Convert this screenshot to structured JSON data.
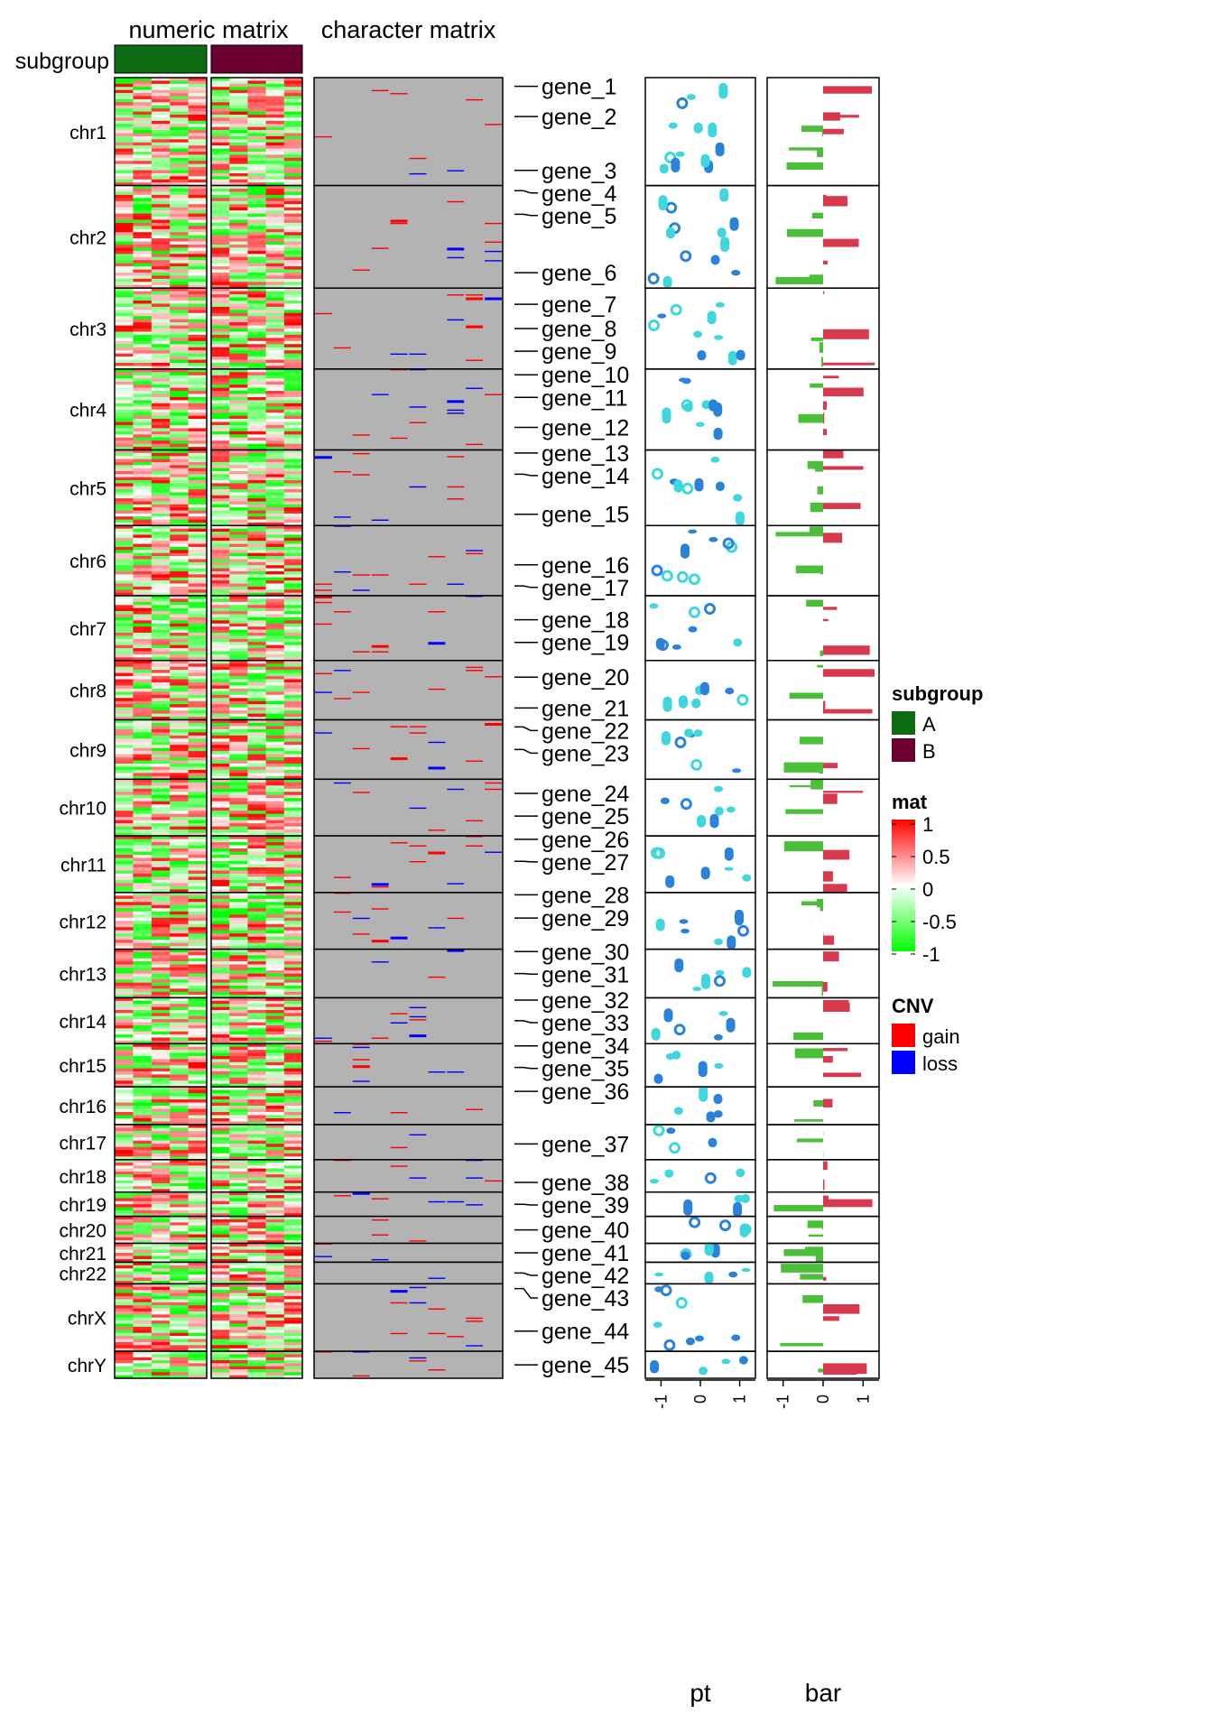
{
  "chart_data": {
    "type": "heatmap",
    "titles": {
      "numeric": "numeric matrix",
      "character": "character matrix"
    },
    "row_annotation_label": "subgroup",
    "subgroups": [
      {
        "name": "A",
        "color": "#0d6b12"
      },
      {
        "name": "B",
        "color": "#6b0030"
      }
    ],
    "chromosomes": [
      {
        "label": "chr1",
        "size": 20
      },
      {
        "label": "chr2",
        "size": 19
      },
      {
        "label": "chr3",
        "size": 15
      },
      {
        "label": "chr4",
        "size": 15
      },
      {
        "label": "chr5",
        "size": 14
      },
      {
        "label": "chr6",
        "size": 13
      },
      {
        "label": "chr7",
        "size": 12
      },
      {
        "label": "chr8",
        "size": 11
      },
      {
        "label": "chr9",
        "size": 11
      },
      {
        "label": "chr10",
        "size": 10.5
      },
      {
        "label": "chr11",
        "size": 10.5
      },
      {
        "label": "chr12",
        "size": 10.5
      },
      {
        "label": "chr13",
        "size": 9
      },
      {
        "label": "chr14",
        "size": 8.5
      },
      {
        "label": "chr15",
        "size": 8
      },
      {
        "label": "chr16",
        "size": 7
      },
      {
        "label": "chr17",
        "size": 6.5
      },
      {
        "label": "chr18",
        "size": 6
      },
      {
        "label": "chr19",
        "size": 4.5
      },
      {
        "label": "chr20",
        "size": 5
      },
      {
        "label": "chr21",
        "size": 3.5
      },
      {
        "label": "chr22",
        "size": 4
      },
      {
        "label": "chrX",
        "size": 12.5
      },
      {
        "label": "chrY",
        "size": 5
      }
    ],
    "genes": [
      {
        "label": "gene_1",
        "chr": "chr1",
        "pos": 0.08
      },
      {
        "label": "gene_2",
        "chr": "chr1",
        "pos": 0.36
      },
      {
        "label": "gene_3",
        "chr": "chr1",
        "pos": 0.86
      },
      {
        "label": "gene_4",
        "chr": "chr2",
        "pos": 0.05
      },
      {
        "label": "gene_5",
        "chr": "chr2",
        "pos": 0.28
      },
      {
        "label": "gene_6",
        "chr": "chr2",
        "pos": 0.85
      },
      {
        "label": "gene_7",
        "chr": "chr3",
        "pos": 0.2
      },
      {
        "label": "gene_8",
        "chr": "chr3",
        "pos": 0.5
      },
      {
        "label": "gene_9",
        "chr": "chr3",
        "pos": 0.78
      },
      {
        "label": "gene_10",
        "chr": "chr4",
        "pos": 0.07
      },
      {
        "label": "gene_11",
        "chr": "chr4",
        "pos": 0.35
      },
      {
        "label": "gene_12",
        "chr": "chr4",
        "pos": 0.72
      },
      {
        "label": "gene_13",
        "chr": "chr5",
        "pos": 0.04
      },
      {
        "label": "gene_14",
        "chr": "chr5",
        "pos": 0.32
      },
      {
        "label": "gene_15",
        "chr": "chr5",
        "pos": 0.85
      },
      {
        "label": "gene_16",
        "chr": "chr6",
        "pos": 0.56
      },
      {
        "label": "gene_17",
        "chr": "chr6",
        "pos": 0.86
      },
      {
        "label": "gene_18",
        "chr": "chr7",
        "pos": 0.37
      },
      {
        "label": "gene_19",
        "chr": "chr7",
        "pos": 0.72
      },
      {
        "label": "gene_20",
        "chr": "chr8",
        "pos": 0.28
      },
      {
        "label": "gene_21",
        "chr": "chr8",
        "pos": 0.8
      },
      {
        "label": "gene_22",
        "chr": "chr9",
        "pos": 0.12
      },
      {
        "label": "gene_23",
        "chr": "chr9",
        "pos": 0.5
      },
      {
        "label": "gene_24",
        "chr": "chr10",
        "pos": 0.25
      },
      {
        "label": "gene_25",
        "chr": "chr10",
        "pos": 0.65
      },
      {
        "label": "gene_26",
        "chr": "chr11",
        "pos": 0.06
      },
      {
        "label": "gene_27",
        "chr": "chr11",
        "pos": 0.45
      },
      {
        "label": "gene_28",
        "chr": "chr12",
        "pos": 0.04
      },
      {
        "label": "gene_29",
        "chr": "chr12",
        "pos": 0.45
      },
      {
        "label": "gene_30",
        "chr": "chr13",
        "pos": 0.05
      },
      {
        "label": "gene_31",
        "chr": "chr13",
        "pos": 0.5
      },
      {
        "label": "gene_32",
        "chr": "chr14",
        "pos": 0.05
      },
      {
        "label": "gene_33",
        "chr": "chr14",
        "pos": 0.5
      },
      {
        "label": "gene_34",
        "chr": "chr15",
        "pos": 0.05
      },
      {
        "label": "gene_35",
        "chr": "chr15",
        "pos": 0.55
      },
      {
        "label": "gene_36",
        "chr": "chr16",
        "pos": 0.12
      },
      {
        "label": "gene_37",
        "chr": "chr17",
        "pos": 0.55
      },
      {
        "label": "gene_38",
        "chr": "chr18",
        "pos": 0.7
      },
      {
        "label": "gene_39",
        "chr": "chr19",
        "pos": 0.5
      },
      {
        "label": "gene_40",
        "chr": "chr20",
        "pos": 0.5
      },
      {
        "label": "gene_41",
        "chr": "chr21",
        "pos": 0.5
      },
      {
        "label": "gene_42",
        "chr": "chr22",
        "pos": 0.5
      },
      {
        "label": "gene_43",
        "chr": "chrX",
        "pos": 0.07
      },
      {
        "label": "gene_44",
        "chr": "chrX",
        "pos": 0.7
      },
      {
        "label": "gene_45",
        "chr": "chrY",
        "pos": 0.5
      }
    ],
    "pt": {
      "label": "pt",
      "xlim": [
        -1.4,
        1.4
      ],
      "ticks": [
        "-1",
        "0",
        "1"
      ],
      "colors": [
        "#2b83d9",
        "#3fd6de"
      ]
    },
    "bar": {
      "label": "bar",
      "xlim": [
        -1.4,
        1.4
      ],
      "ticks": [
        "-1",
        "0",
        "1"
      ],
      "positive_color": "#d7394f",
      "negative_color": "#4cbf3a"
    },
    "legends": {
      "subgroup": {
        "title": "subgroup",
        "items": [
          "A",
          "B"
        ]
      },
      "mat": {
        "title": "mat",
        "ticks": [
          "1",
          "0.5",
          "0",
          "-0.5",
          "-1"
        ],
        "range": [
          -1,
          1
        ]
      },
      "cnv": {
        "title": "CNV",
        "items": [
          {
            "label": "gain",
            "color": "#ff0000"
          },
          {
            "label": "loss",
            "color": "#0000ff"
          }
        ]
      }
    },
    "colors": {
      "cnv_background": "#b3b3b3",
      "high": "#ff0000",
      "mid": "#ffffff",
      "low": "#00ff00"
    }
  }
}
